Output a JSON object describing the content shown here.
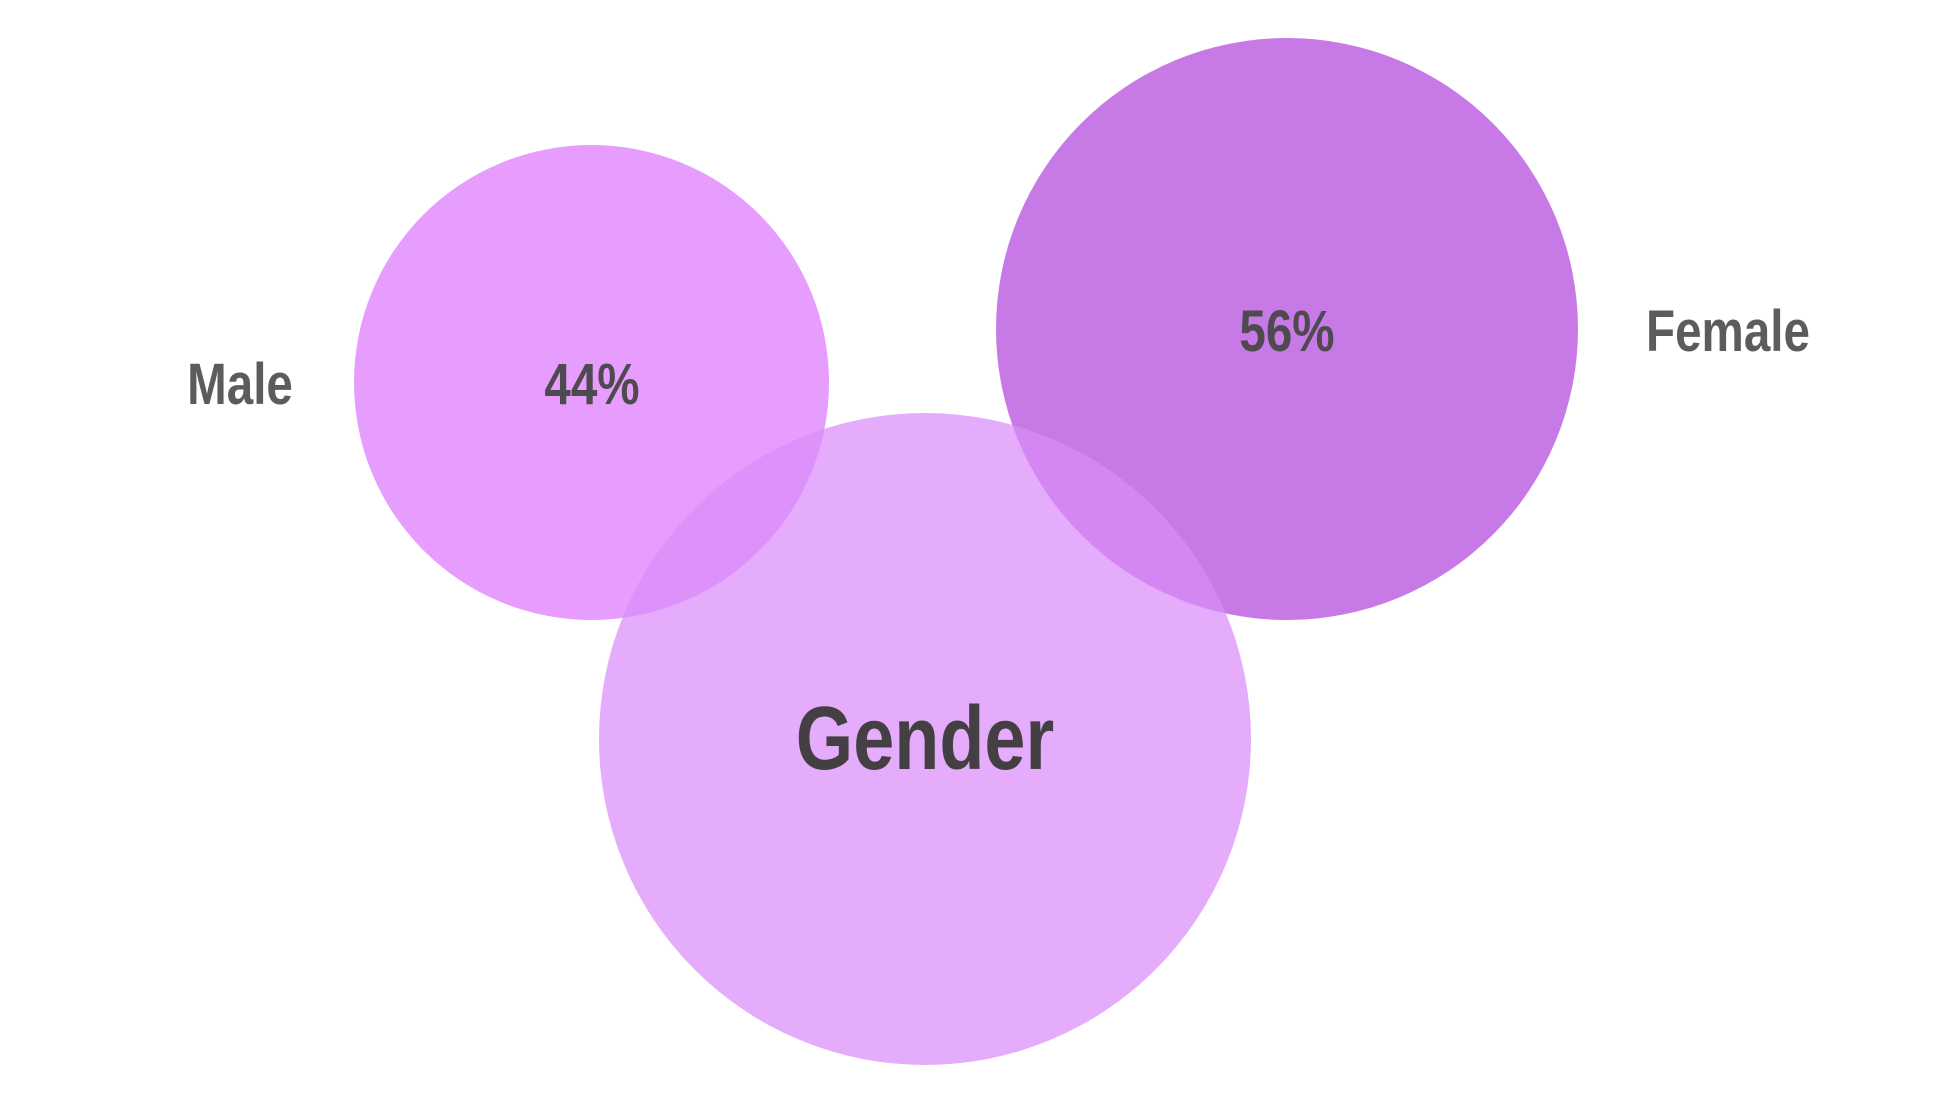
{
  "diagram": {
    "center": {
      "label": "Gender",
      "color": "#d98cf8"
    },
    "male": {
      "label": "Male",
      "value": "44%",
      "color": "#df81fd"
    },
    "female": {
      "label": "Female",
      "value": "56%",
      "color": "#b754df"
    },
    "text_colors": {
      "side_label": "#5c5c5c",
      "value_label": "#4f4a4f",
      "center_label": "#433f43"
    }
  }
}
